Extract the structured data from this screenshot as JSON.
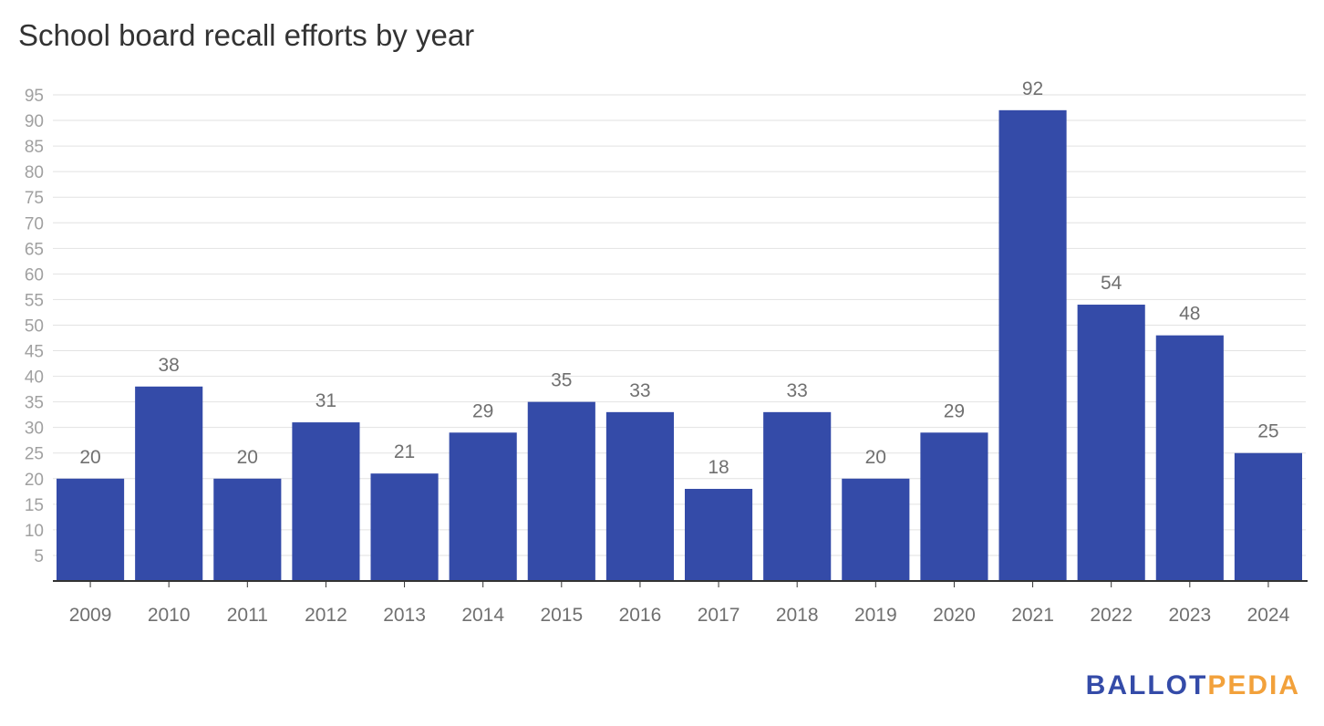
{
  "chart_data": {
    "type": "bar",
    "title": "School board recall efforts by year",
    "xlabel": "",
    "ylabel": "",
    "categories": [
      "2009",
      "2010",
      "2011",
      "2012",
      "2013",
      "2014",
      "2015",
      "2016",
      "2017",
      "2018",
      "2019",
      "2020",
      "2021",
      "2022",
      "2023",
      "2024"
    ],
    "values": [
      20,
      38,
      20,
      31,
      21,
      29,
      35,
      33,
      18,
      33,
      20,
      29,
      92,
      54,
      48,
      25
    ],
    "ylim": [
      0,
      95
    ],
    "yticks": [
      5,
      10,
      15,
      20,
      25,
      30,
      35,
      40,
      45,
      50,
      55,
      60,
      65,
      70,
      75,
      80,
      85,
      90,
      95
    ],
    "grid": true,
    "data_labels": true,
    "colors": {
      "bar": "#344ba8",
      "grid": "#e2e2e2",
      "axis": "#333333"
    }
  },
  "branding": {
    "part1": "BALLOT",
    "part2": "PEDIA",
    "color1": "#344ba8",
    "color2": "#f2a13b"
  }
}
